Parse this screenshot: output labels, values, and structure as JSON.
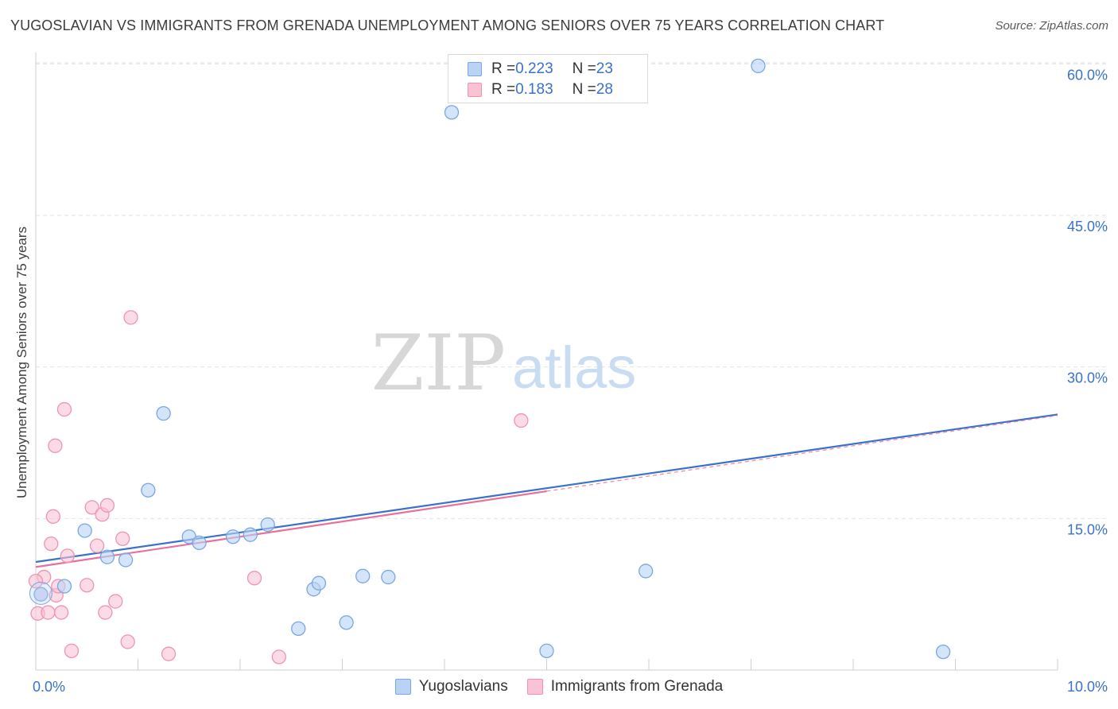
{
  "title": "YUGOSLAVIAN VS IMMIGRANTS FROM GRENADA UNEMPLOYMENT AMONG SENIORS OVER 75 YEARS CORRELATION CHART",
  "source": "Source: ZipAtlas.com",
  "watermark": {
    "zip": "ZIP",
    "atlas": "atlas"
  },
  "legend": {
    "r_key": "R = ",
    "n_key": "N = ",
    "series": [
      {
        "r": "0.223",
        "n": "23"
      },
      {
        "r": "0.183",
        "n": "28"
      }
    ]
  },
  "colors": {
    "blue_fill": "#b9d3f5",
    "blue_stroke": "#7aa6e3",
    "blue_line": "#3a72c9",
    "pink_fill": "#f9c3d3",
    "pink_stroke": "#ef93b1",
    "pink_line": "#e8709a",
    "grid": "#e2e2e2",
    "tick_text": "#3a72c9"
  },
  "chart_data": {
    "type": "scatter",
    "title": "YUGOSLAVIAN VS IMMIGRANTS FROM GRENADA UNEMPLOYMENT AMONG SENIORS OVER 75 YEARS CORRELATION CHART",
    "xlabel": "",
    "ylabel": "Unemployment Among Seniors over 75 years",
    "xlim": [
      0,
      10
    ],
    "ylim": [
      0,
      60.5
    ],
    "x_tick_labels": [
      {
        "value": 0,
        "label": "0.0%"
      },
      {
        "value": 10,
        "label": "10.0%"
      }
    ],
    "x_minor_ticks": [
      1,
      2,
      3,
      4,
      5,
      6,
      7,
      8,
      9
    ],
    "y_ticks": [
      {
        "value": 15,
        "label": "15.0%"
      },
      {
        "value": 30,
        "label": "30.0%"
      },
      {
        "value": 45,
        "label": "45.0%"
      },
      {
        "value": 60,
        "label": "60.0%"
      }
    ],
    "grid": true,
    "legend_position": "top-center",
    "series": [
      {
        "name": "Yugoslavians",
        "color": "blue",
        "points": [
          [
            0.05,
            7.5
          ],
          [
            0.28,
            8.3
          ],
          [
            0.48,
            13.8
          ],
          [
            0.7,
            11.2
          ],
          [
            0.88,
            10.9
          ],
          [
            1.1,
            17.8
          ],
          [
            1.25,
            25.4
          ],
          [
            1.5,
            13.2
          ],
          [
            1.6,
            12.6
          ],
          [
            1.93,
            13.2
          ],
          [
            2.1,
            13.4
          ],
          [
            2.27,
            14.4
          ],
          [
            2.57,
            4.1
          ],
          [
            2.72,
            8.0
          ],
          [
            2.77,
            8.6
          ],
          [
            3.04,
            4.7
          ],
          [
            3.2,
            9.3
          ],
          [
            3.45,
            9.2
          ],
          [
            4.07,
            55.2
          ],
          [
            5.0,
            1.9
          ],
          [
            5.97,
            9.8
          ],
          [
            7.07,
            59.8
          ],
          [
            8.88,
            1.8
          ]
        ],
        "trend": {
          "x": [
            0,
            10
          ],
          "y": [
            10.7,
            25.3
          ],
          "solid_until": 10
        }
      },
      {
        "name": "Immigrants from Grenada",
        "color": "pink",
        "points": [
          [
            0.02,
            5.6
          ],
          [
            0.05,
            7.5
          ],
          [
            0.08,
            9.2
          ],
          [
            0.12,
            5.7
          ],
          [
            0.15,
            12.5
          ],
          [
            0.17,
            15.2
          ],
          [
            0.19,
            22.2
          ],
          [
            0.2,
            7.4
          ],
          [
            0.22,
            8.3
          ],
          [
            0.25,
            5.7
          ],
          [
            0.28,
            25.8
          ],
          [
            0.31,
            11.3
          ],
          [
            0.35,
            1.9
          ],
          [
            0.5,
            8.4
          ],
          [
            0.55,
            16.1
          ],
          [
            0.6,
            12.3
          ],
          [
            0.65,
            15.4
          ],
          [
            0.68,
            5.7
          ],
          [
            0.7,
            16.3
          ],
          [
            0.78,
            6.8
          ],
          [
            0.85,
            13.0
          ],
          [
            0.9,
            2.8
          ],
          [
            0.93,
            34.9
          ],
          [
            1.3,
            1.6
          ],
          [
            2.14,
            9.1
          ],
          [
            2.38,
            1.3
          ],
          [
            4.75,
            24.7
          ],
          [
            0.0,
            8.8
          ]
        ],
        "trend": {
          "x": [
            0,
            10
          ],
          "y": [
            10.2,
            25.2
          ],
          "solid_until": 5.0
        }
      }
    ]
  }
}
